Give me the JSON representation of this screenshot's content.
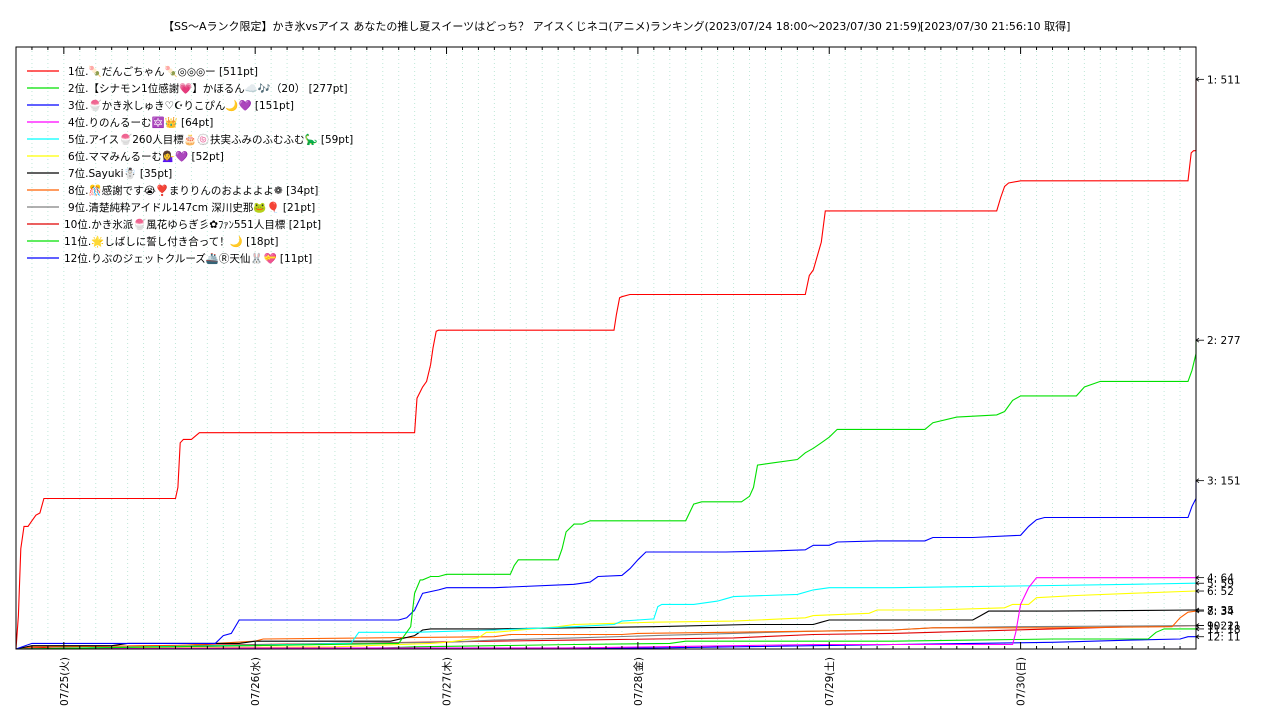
{
  "chart_data": {
    "type": "line",
    "title": "【SS〜Aランク限定】かき氷vsアイス あなたの推し夏スイーツはどっち？ アイスくじネコ(アニメ)ランキング(2023/07/24 18:00〜2023/07/30 21:59)",
    "fetched_at": "[2023/07/30 21:56:10 取得]",
    "x_range_hours": [
      0,
      148
    ],
    "ylim": [
      0,
      540
    ],
    "x_ticks": [
      {
        "label": "07/25(火)",
        "hour": 6
      },
      {
        "label": "07/26(水)",
        "hour": 30
      },
      {
        "label": "07/27(木)",
        "hour": 54
      },
      {
        "label": "07/28(金)",
        "hour": 78
      },
      {
        "label": "07/29(土)",
        "hour": 102
      },
      {
        "label": "07/30(日)",
        "hour": 126
      }
    ],
    "grid": "vertical-dotted",
    "legend_position": "top-left",
    "series": [
      {
        "rank": "1位.",
        "name": "🍡だんごちゃん🍡◎◎◎ー",
        "pts": "[511pt]",
        "end_label": "1: 511",
        "final": 511,
        "color": "#ff0000",
        "points": [
          [
            0,
            0
          ],
          [
            0.3,
            30
          ],
          [
            0.6,
            90
          ],
          [
            1,
            110
          ],
          [
            1.5,
            110
          ],
          [
            2,
            115
          ],
          [
            2.5,
            120
          ],
          [
            3,
            122
          ],
          [
            3.5,
            135
          ],
          [
            20,
            135
          ],
          [
            20.3,
            145
          ],
          [
            20.6,
            185
          ],
          [
            21,
            188
          ],
          [
            22,
            188
          ],
          [
            23,
            194
          ],
          [
            50,
            194
          ],
          [
            50.3,
            225
          ],
          [
            51,
            235
          ],
          [
            51.5,
            240
          ],
          [
            52,
            255
          ],
          [
            52.3,
            270
          ],
          [
            52.7,
            285
          ],
          [
            53,
            286
          ],
          [
            75,
            286
          ],
          [
            75.3,
            300
          ],
          [
            75.7,
            315
          ],
          [
            76,
            316
          ],
          [
            77,
            318
          ],
          [
            99,
            318
          ],
          [
            99.5,
            335
          ],
          [
            100,
            340
          ],
          [
            101,
            365
          ],
          [
            101.5,
            393
          ],
          [
            123,
            393
          ],
          [
            123.5,
            405
          ],
          [
            124,
            415
          ],
          [
            124.5,
            418
          ],
          [
            126,
            420
          ],
          [
            147,
            420
          ],
          [
            147.4,
            445
          ],
          [
            147.7,
            447
          ],
          [
            148,
            447
          ],
          [
            148,
            511
          ]
        ]
      },
      {
        "rank": "2位.",
        "name": "【シナモン1位感謝💗】かほるん☁️🎶（20）",
        "pts": "[277pt]",
        "end_label": "2: 277",
        "final": 277,
        "color": "#00e000",
        "points": [
          [
            0,
            0
          ],
          [
            48,
            5
          ],
          [
            49.5,
            20
          ],
          [
            50,
            50
          ],
          [
            50.7,
            62
          ],
          [
            51,
            62
          ],
          [
            52,
            65
          ],
          [
            53,
            65
          ],
          [
            54,
            67
          ],
          [
            62,
            67
          ],
          [
            62.5,
            75
          ],
          [
            63,
            80
          ],
          [
            68,
            80
          ],
          [
            68.5,
            90
          ],
          [
            69,
            105
          ],
          [
            70,
            112
          ],
          [
            71,
            112
          ],
          [
            72,
            115
          ],
          [
            84,
            115
          ],
          [
            85,
            130
          ],
          [
            86,
            132
          ],
          [
            91,
            132
          ],
          [
            92,
            137
          ],
          [
            92.5,
            145
          ],
          [
            93,
            165
          ],
          [
            95,
            167
          ],
          [
            98,
            170
          ],
          [
            99,
            176
          ],
          [
            100,
            180
          ],
          [
            101,
            185
          ],
          [
            102,
            190
          ],
          [
            103,
            197
          ],
          [
            114,
            197
          ],
          [
            115,
            203
          ],
          [
            118,
            208
          ],
          [
            123,
            210
          ],
          [
            124,
            213
          ],
          [
            125,
            223
          ],
          [
            126,
            227
          ],
          [
            133,
            227
          ],
          [
            134,
            235
          ],
          [
            136,
            240
          ],
          [
            147,
            240
          ],
          [
            147.5,
            250
          ],
          [
            148,
            265
          ],
          [
            148,
            277
          ]
        ]
      },
      {
        "rank": "3位.",
        "name": "🍧かき氷しゅき♡☪りこぴん🌙💜",
        "pts": "[151pt]",
        "end_label": "3: 151",
        "final": 151,
        "color": "#0000ff",
        "points": [
          [
            0,
            0
          ],
          [
            2,
            5
          ],
          [
            25,
            5
          ],
          [
            26,
            12
          ],
          [
            27,
            14
          ],
          [
            28,
            26
          ],
          [
            48,
            26
          ],
          [
            49,
            28
          ],
          [
            50,
            35
          ],
          [
            51,
            50
          ],
          [
            53,
            53
          ],
          [
            54,
            55
          ],
          [
            60,
            55
          ],
          [
            70,
            58
          ],
          [
            72,
            60
          ],
          [
            73,
            65
          ],
          [
            76,
            66
          ],
          [
            77,
            72
          ],
          [
            78,
            80
          ],
          [
            79,
            87
          ],
          [
            80,
            87
          ],
          [
            89,
            87
          ],
          [
            95,
            88
          ],
          [
            99,
            89
          ],
          [
            100,
            93
          ],
          [
            102,
            93
          ],
          [
            103,
            96
          ],
          [
            108,
            97
          ],
          [
            114,
            97
          ],
          [
            115,
            100
          ],
          [
            120,
            100
          ],
          [
            126,
            102
          ],
          [
            127,
            110
          ],
          [
            128,
            116
          ],
          [
            129,
            118
          ],
          [
            133,
            118
          ],
          [
            147,
            118
          ],
          [
            147.5,
            128
          ],
          [
            148,
            135
          ],
          [
            148,
            151
          ]
        ]
      },
      {
        "rank": "4位.",
        "name": "りのんるーむ🔯👑",
        "pts": "[64pt]",
        "end_label": "4: 64",
        "final": 64,
        "color": "#ff00ff",
        "points": [
          [
            0,
            0
          ],
          [
            30,
            1
          ],
          [
            70,
            1
          ],
          [
            80,
            2
          ],
          [
            90,
            3
          ],
          [
            100,
            4
          ],
          [
            110,
            4
          ],
          [
            125,
            4
          ],
          [
            125.4,
            15
          ],
          [
            126,
            40
          ],
          [
            127,
            55
          ],
          [
            128,
            64
          ],
          [
            148,
            64
          ]
        ]
      },
      {
        "rank": "5位.",
        "name": "アイス🍧260人目標🎂🍥扶実ふみのふむふむ🦕",
        "pts": "[59pt]",
        "end_label": "5: 59",
        "final": 59,
        "color": "#00ffff",
        "points": [
          [
            0,
            0
          ],
          [
            42,
            5
          ],
          [
            43,
            15
          ],
          [
            50,
            15
          ],
          [
            60,
            17
          ],
          [
            70,
            20
          ],
          [
            75,
            22
          ],
          [
            76,
            25
          ],
          [
            78,
            26
          ],
          [
            80,
            27
          ],
          [
            80.5,
            38
          ],
          [
            81,
            40
          ],
          [
            85,
            40
          ],
          [
            88,
            43
          ],
          [
            89,
            45
          ],
          [
            90,
            47
          ],
          [
            98,
            49
          ],
          [
            100,
            53
          ],
          [
            102,
            55
          ],
          [
            110,
            55
          ],
          [
            120,
            56
          ],
          [
            130,
            57
          ],
          [
            140,
            58
          ],
          [
            148,
            59
          ]
        ]
      },
      {
        "rank": "6位.",
        "name": "ママみんるーむ💁‍♀️💜",
        "pts": "[52pt]",
        "end_label": "6: 52",
        "final": 52,
        "color": "#ffff00",
        "points": [
          [
            0,
            0
          ],
          [
            40,
            2
          ],
          [
            52,
            5
          ],
          [
            54,
            6
          ],
          [
            58,
            10
          ],
          [
            59,
            15
          ],
          [
            60,
            15
          ],
          [
            68,
            20
          ],
          [
            70,
            22
          ],
          [
            80,
            24
          ],
          [
            90,
            25
          ],
          [
            99,
            28
          ],
          [
            100,
            30
          ],
          [
            107,
            32
          ],
          [
            108,
            35
          ],
          [
            115,
            35
          ],
          [
            124,
            37
          ],
          [
            125,
            40
          ],
          [
            127,
            40
          ],
          [
            128,
            46
          ],
          [
            133,
            48
          ],
          [
            140,
            50
          ],
          [
            148,
            52
          ]
        ]
      },
      {
        "rank": "7位.",
        "name": "Sayuki☃️",
        "pts": "[35pt]",
        "end_label": "7: 35",
        "final": 35,
        "color": "#000000",
        "points": [
          [
            0,
            0
          ],
          [
            2,
            3
          ],
          [
            12,
            3
          ],
          [
            14,
            5
          ],
          [
            28,
            5
          ],
          [
            30,
            7
          ],
          [
            47,
            7
          ],
          [
            50,
            12
          ],
          [
            51,
            17
          ],
          [
            52,
            18
          ],
          [
            60,
            18
          ],
          [
            70,
            19
          ],
          [
            80,
            20
          ],
          [
            92,
            22
          ],
          [
            100,
            22
          ],
          [
            101,
            24
          ],
          [
            102,
            26
          ],
          [
            120,
            26
          ],
          [
            121,
            30
          ],
          [
            122,
            34
          ],
          [
            130,
            34
          ],
          [
            148,
            35
          ]
        ]
      },
      {
        "rank": "8位.",
        "name": "🎊感謝です😭❣️まりりんのおよよよよ❁",
        "pts": "[34pt]",
        "end_label": "8: 34",
        "final": 34,
        "color": "#ff6000",
        "points": [
          [
            0,
            0
          ],
          [
            2,
            2
          ],
          [
            20,
            3
          ],
          [
            30,
            7
          ],
          [
            31,
            9
          ],
          [
            60,
            11
          ],
          [
            62,
            13
          ],
          [
            76,
            13
          ],
          [
            78,
            14
          ],
          [
            100,
            16
          ],
          [
            110,
            17
          ],
          [
            115,
            19
          ],
          [
            130,
            19
          ],
          [
            145,
            20
          ],
          [
            146,
            28
          ],
          [
            147,
            33
          ],
          [
            148,
            34
          ]
        ]
      },
      {
        "rank": "9位.",
        "name": "清楚純粋アイドル147cm 深川史那🐸🎈",
        "pts": "[21pt]",
        "end_label": "9: 21",
        "final": 21,
        "color": "#808080",
        "points": [
          [
            0,
            0
          ],
          [
            10,
            1
          ],
          [
            30,
            3
          ],
          [
            40,
            5
          ],
          [
            54,
            6
          ],
          [
            60,
            8
          ],
          [
            70,
            10
          ],
          [
            80,
            12
          ],
          [
            90,
            14
          ],
          [
            100,
            16
          ],
          [
            110,
            17
          ],
          [
            115,
            19
          ],
          [
            125,
            20
          ],
          [
            148,
            21
          ]
        ]
      },
      {
        "rank": "10位.",
        "name": "かき氷派🍧風花ゆらぎ彡✿ﾌｧﾝ551人目標",
        "pts": "[21pt]",
        "end_label": "10: 21",
        "final": 21,
        "color": "#e00000",
        "points": [
          [
            0,
            0
          ],
          [
            5,
            2
          ],
          [
            30,
            4
          ],
          [
            50,
            6
          ],
          [
            70,
            8
          ],
          [
            90,
            10
          ],
          [
            100,
            13
          ],
          [
            110,
            14
          ],
          [
            120,
            16
          ],
          [
            130,
            18
          ],
          [
            140,
            20
          ],
          [
            148,
            21
          ]
        ]
      },
      {
        "rank": "11位.",
        "name": "🌟しばしに誓し付き合って！🌙",
        "pts": "[18pt]",
        "end_label": "11: 18",
        "final": 18,
        "color": "#00e000",
        "points": [
          [
            0,
            0
          ],
          [
            40,
            0
          ],
          [
            46,
            1
          ],
          [
            50,
            2
          ],
          [
            60,
            3
          ],
          [
            70,
            4
          ],
          [
            82,
            5
          ],
          [
            84,
            7
          ],
          [
            90,
            7
          ],
          [
            100,
            7
          ],
          [
            110,
            7
          ],
          [
            120,
            8
          ],
          [
            130,
            9
          ],
          [
            142,
            9
          ],
          [
            143,
            15
          ],
          [
            144,
            18
          ],
          [
            148,
            18
          ]
        ]
      },
      {
        "rank": "12位.",
        "name": "りぶのジェットクルーズ🚢Ⓡ天仙🐰💝",
        "pts": "[11pt]",
        "end_label": "12: 11",
        "final": 11,
        "color": "#0000ff",
        "points": [
          [
            0,
            0
          ],
          [
            40,
            0
          ],
          [
            60,
            0
          ],
          [
            70,
            1
          ],
          [
            80,
            1
          ],
          [
            90,
            2
          ],
          [
            100,
            3
          ],
          [
            110,
            4
          ],
          [
            120,
            5
          ],
          [
            130,
            6
          ],
          [
            140,
            8
          ],
          [
            146,
            9
          ],
          [
            147,
            11
          ],
          [
            148,
            11
          ]
        ]
      }
    ]
  }
}
